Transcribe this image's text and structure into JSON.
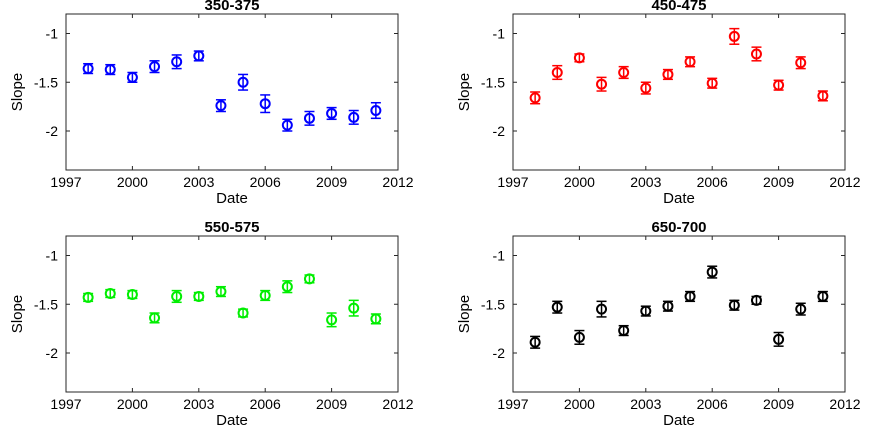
{
  "chart_data": [
    {
      "type": "scatter",
      "title": "350-375",
      "xlabel": "Date",
      "ylabel": "Slope",
      "xlim": [
        1997,
        2012
      ],
      "ylim": [
        -2.4,
        -0.8
      ],
      "xticks": [
        "1997",
        "2000",
        "2003",
        "2006",
        "2009",
        "2012"
      ],
      "yticks": [
        "-1",
        "-1.5",
        "-2"
      ],
      "color": "#0000ff",
      "grid": false,
      "series": [
        {
          "x": [
            1998,
            1999,
            2000,
            2001,
            2002,
            2003,
            2004,
            2005,
            2006,
            2007,
            2008,
            2009,
            2010,
            2011
          ],
          "y": [
            -1.36,
            -1.37,
            -1.45,
            -1.34,
            -1.29,
            -1.23,
            -1.74,
            -1.5,
            -1.72,
            -1.94,
            -1.87,
            -1.82,
            -1.86,
            -1.79
          ],
          "err": [
            0.05,
            0.05,
            0.05,
            0.06,
            0.07,
            0.05,
            0.06,
            0.08,
            0.09,
            0.06,
            0.07,
            0.06,
            0.07,
            0.08
          ]
        }
      ]
    },
    {
      "type": "scatter",
      "title": "450-475",
      "xlabel": "Date",
      "ylabel": "Slope",
      "xlim": [
        1997,
        2012
      ],
      "ylim": [
        -2.4,
        -0.8
      ],
      "xticks": [
        "1997",
        "2000",
        "2003",
        "2006",
        "2009",
        "2012"
      ],
      "yticks": [
        "-1",
        "-1.5",
        "-2"
      ],
      "color": "#ff0000",
      "grid": false,
      "series": [
        {
          "x": [
            1998,
            1999,
            2000,
            2001,
            2002,
            2003,
            2004,
            2005,
            2006,
            2007,
            2008,
            2009,
            2010,
            2011
          ],
          "y": [
            -1.66,
            -1.4,
            -1.25,
            -1.52,
            -1.4,
            -1.56,
            -1.42,
            -1.29,
            -1.51,
            -1.03,
            -1.21,
            -1.53,
            -1.3,
            -1.64
          ],
          "err": [
            0.06,
            0.07,
            0.04,
            0.07,
            0.06,
            0.06,
            0.05,
            0.05,
            0.05,
            0.08,
            0.07,
            0.05,
            0.06,
            0.05
          ]
        }
      ]
    },
    {
      "type": "scatter",
      "title": "550-575",
      "xlabel": "Date",
      "ylabel": "Slope",
      "xlim": [
        1997,
        2012
      ],
      "ylim": [
        -2.4,
        -0.8
      ],
      "xticks": [
        "1997",
        "2000",
        "2003",
        "2006",
        "2009",
        "2012"
      ],
      "yticks": [
        "-1",
        "-1.5",
        "-2"
      ],
      "color": "#00ee00",
      "grid": false,
      "series": [
        {
          "x": [
            1998,
            1999,
            2000,
            2001,
            2002,
            2003,
            2004,
            2005,
            2006,
            2007,
            2008,
            2009,
            2010,
            2011
          ],
          "y": [
            -1.43,
            -1.39,
            -1.4,
            -1.64,
            -1.42,
            -1.42,
            -1.37,
            -1.59,
            -1.41,
            -1.32,
            -1.24,
            -1.66,
            -1.54,
            -1.65
          ],
          "err": [
            0.04,
            0.04,
            0.04,
            0.05,
            0.06,
            0.04,
            0.05,
            0.04,
            0.05,
            0.06,
            0.04,
            0.07,
            0.08,
            0.05
          ]
        }
      ]
    },
    {
      "type": "scatter",
      "title": "650-700",
      "xlabel": "Date",
      "ylabel": "Slope",
      "xlim": [
        1997,
        2012
      ],
      "ylim": [
        -2.4,
        -0.8
      ],
      "xticks": [
        "1997",
        "2000",
        "2003",
        "2006",
        "2009",
        "2012"
      ],
      "yticks": [
        "-1",
        "-1.5",
        "-2"
      ],
      "color": "#000000",
      "grid": false,
      "series": [
        {
          "x": [
            1998,
            1999,
            2000,
            2001,
            2002,
            2003,
            2004,
            2005,
            2006,
            2007,
            2008,
            2009,
            2010,
            2011
          ],
          "y": [
            -1.89,
            -1.53,
            -1.84,
            -1.55,
            -1.77,
            -1.57,
            -1.52,
            -1.42,
            -1.17,
            -1.51,
            -1.46,
            -1.86,
            -1.55,
            -1.42
          ],
          "err": [
            0.06,
            0.06,
            0.07,
            0.08,
            0.05,
            0.05,
            0.05,
            0.05,
            0.06,
            0.05,
            0.04,
            0.07,
            0.06,
            0.05
          ]
        }
      ]
    }
  ]
}
